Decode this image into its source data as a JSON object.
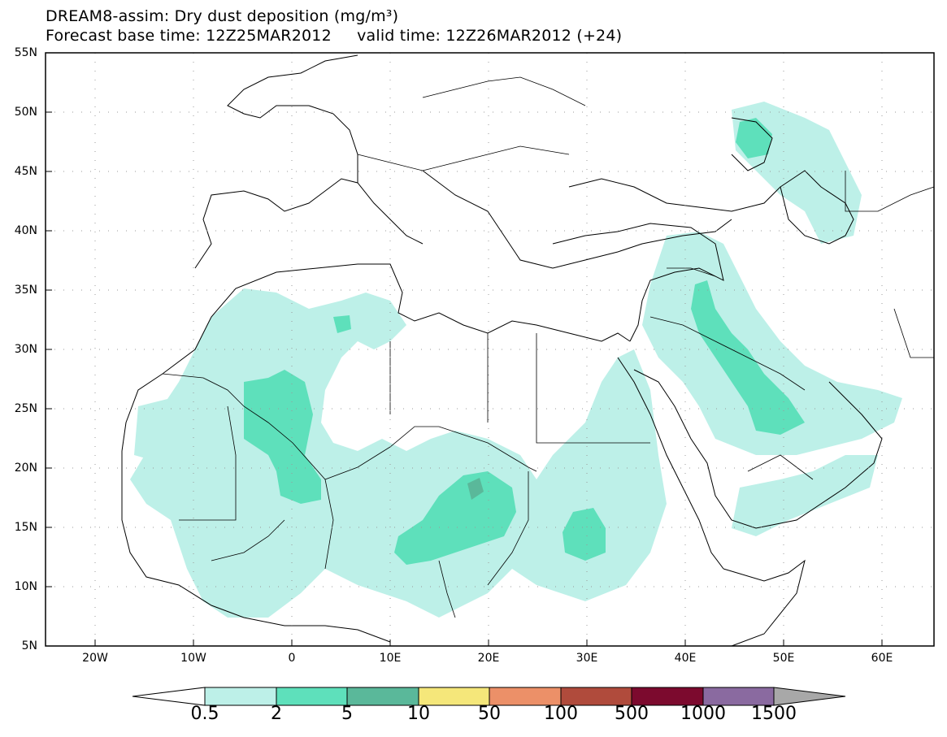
{
  "title": {
    "line1": "DREAM8-assim: Dry dust deposition (mg/m³)",
    "line2_base": "Forecast base time: 12Z25MAR2012",
    "line2_valid": "valid time: 12Z26MAR2012 (+24)"
  },
  "axes": {
    "lat_labels": [
      "55N",
      "50N",
      "45N",
      "40N",
      "35N",
      "30N",
      "25N",
      "20N",
      "15N",
      "10N",
      "5N"
    ],
    "lon_labels": [
      "20W",
      "10W",
      "0",
      "10E",
      "20E",
      "30E",
      "40E",
      "50E",
      "60E"
    ]
  },
  "colorbar": {
    "labels": [
      "0.5",
      "2",
      "5",
      "10",
      "50",
      "100",
      "500",
      "1000",
      "1500"
    ],
    "colors": [
      "#ffffff",
      "#bdf0e8",
      "#5ee0bb",
      "#5ab89a",
      "#f5e77a",
      "#ec9068",
      "#b04b3c",
      "#7c0a2e",
      "#8a6aa0",
      "#a8a8a8"
    ]
  },
  "colors": {
    "level1": "#bdf0e8",
    "level2": "#5ee0bb",
    "level3": "#5ab89a"
  }
}
